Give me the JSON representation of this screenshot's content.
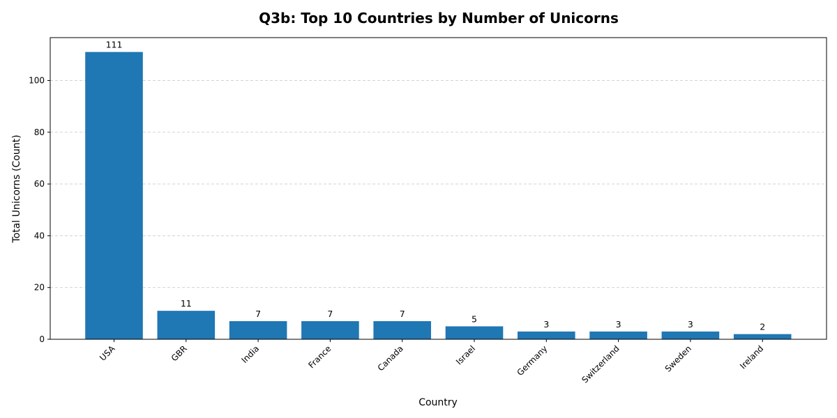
{
  "chart_data": {
    "type": "bar",
    "title": "Q3b: Top 10 Countries by Number of Unicorns",
    "xlabel": "Country",
    "ylabel": "Total Unicorns (Count)",
    "categories": [
      "USA",
      "GBR",
      "India",
      "France",
      "Canada",
      "Israel",
      "Germany",
      "Switzerland",
      "Sweden",
      "Ireland"
    ],
    "values": [
      111,
      11,
      7,
      7,
      7,
      5,
      3,
      3,
      3,
      2
    ],
    "ylim": [
      0,
      116.55
    ],
    "yticks": [
      0,
      20,
      40,
      60,
      80,
      100
    ],
    "grid": "y-dashed",
    "bar_color": "#1f77b4"
  }
}
